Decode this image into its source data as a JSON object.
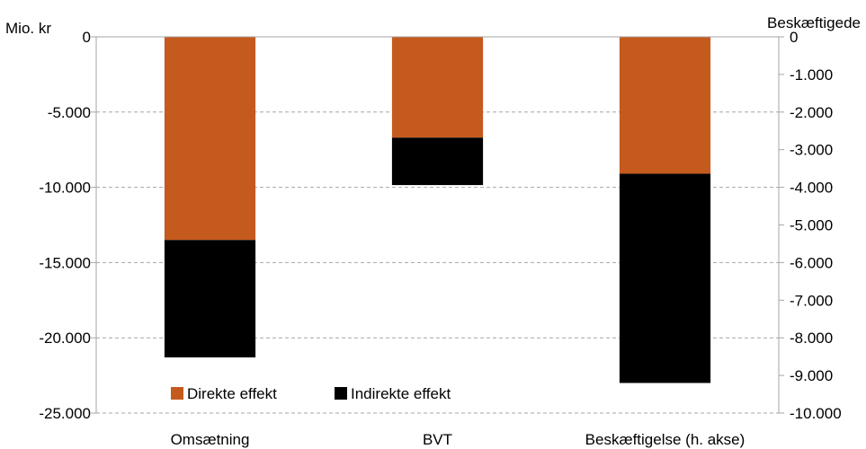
{
  "chart_data": {
    "type": "bar",
    "stacked": true,
    "categories": [
      "Omsætning",
      "BVT",
      "Beskæftigelse (h. akse)"
    ],
    "series": [
      {
        "name": "Direkte effekt",
        "color": "#C55A1E",
        "values": [
          -13500,
          -6700,
          -3640
        ]
      },
      {
        "name": "Indirekte effekt",
        "color": "#000000",
        "values": [
          -7800,
          -3150,
          -5560
        ]
      }
    ],
    "axis_assignment": [
      "left",
      "left",
      "right"
    ],
    "left_axis": {
      "label": "Mio. kr",
      "ylim": [
        -25000,
        0
      ],
      "ticks": [
        0,
        -5000,
        -10000,
        -15000,
        -20000,
        -25000
      ],
      "tick_labels": [
        "0",
        "-5.000",
        "-10.000",
        "-15.000",
        "-20.000",
        "-25.000"
      ]
    },
    "right_axis": {
      "label": "Beskæftigede",
      "ylim": [
        -10000,
        0
      ],
      "ticks": [
        0,
        -1000,
        -2000,
        -3000,
        -4000,
        -5000,
        -6000,
        -7000,
        -8000,
        -9000,
        -10000
      ],
      "tick_labels": [
        "0",
        "-1.000",
        "-2.000",
        "-3.000",
        "-4.000",
        "-5.000",
        "-6.000",
        "-7.000",
        "-8.000",
        "-9.000",
        "-10.000"
      ]
    },
    "gridlines": true,
    "gridline_color": "#A6A6A6",
    "legend_position": "bottom-left"
  }
}
